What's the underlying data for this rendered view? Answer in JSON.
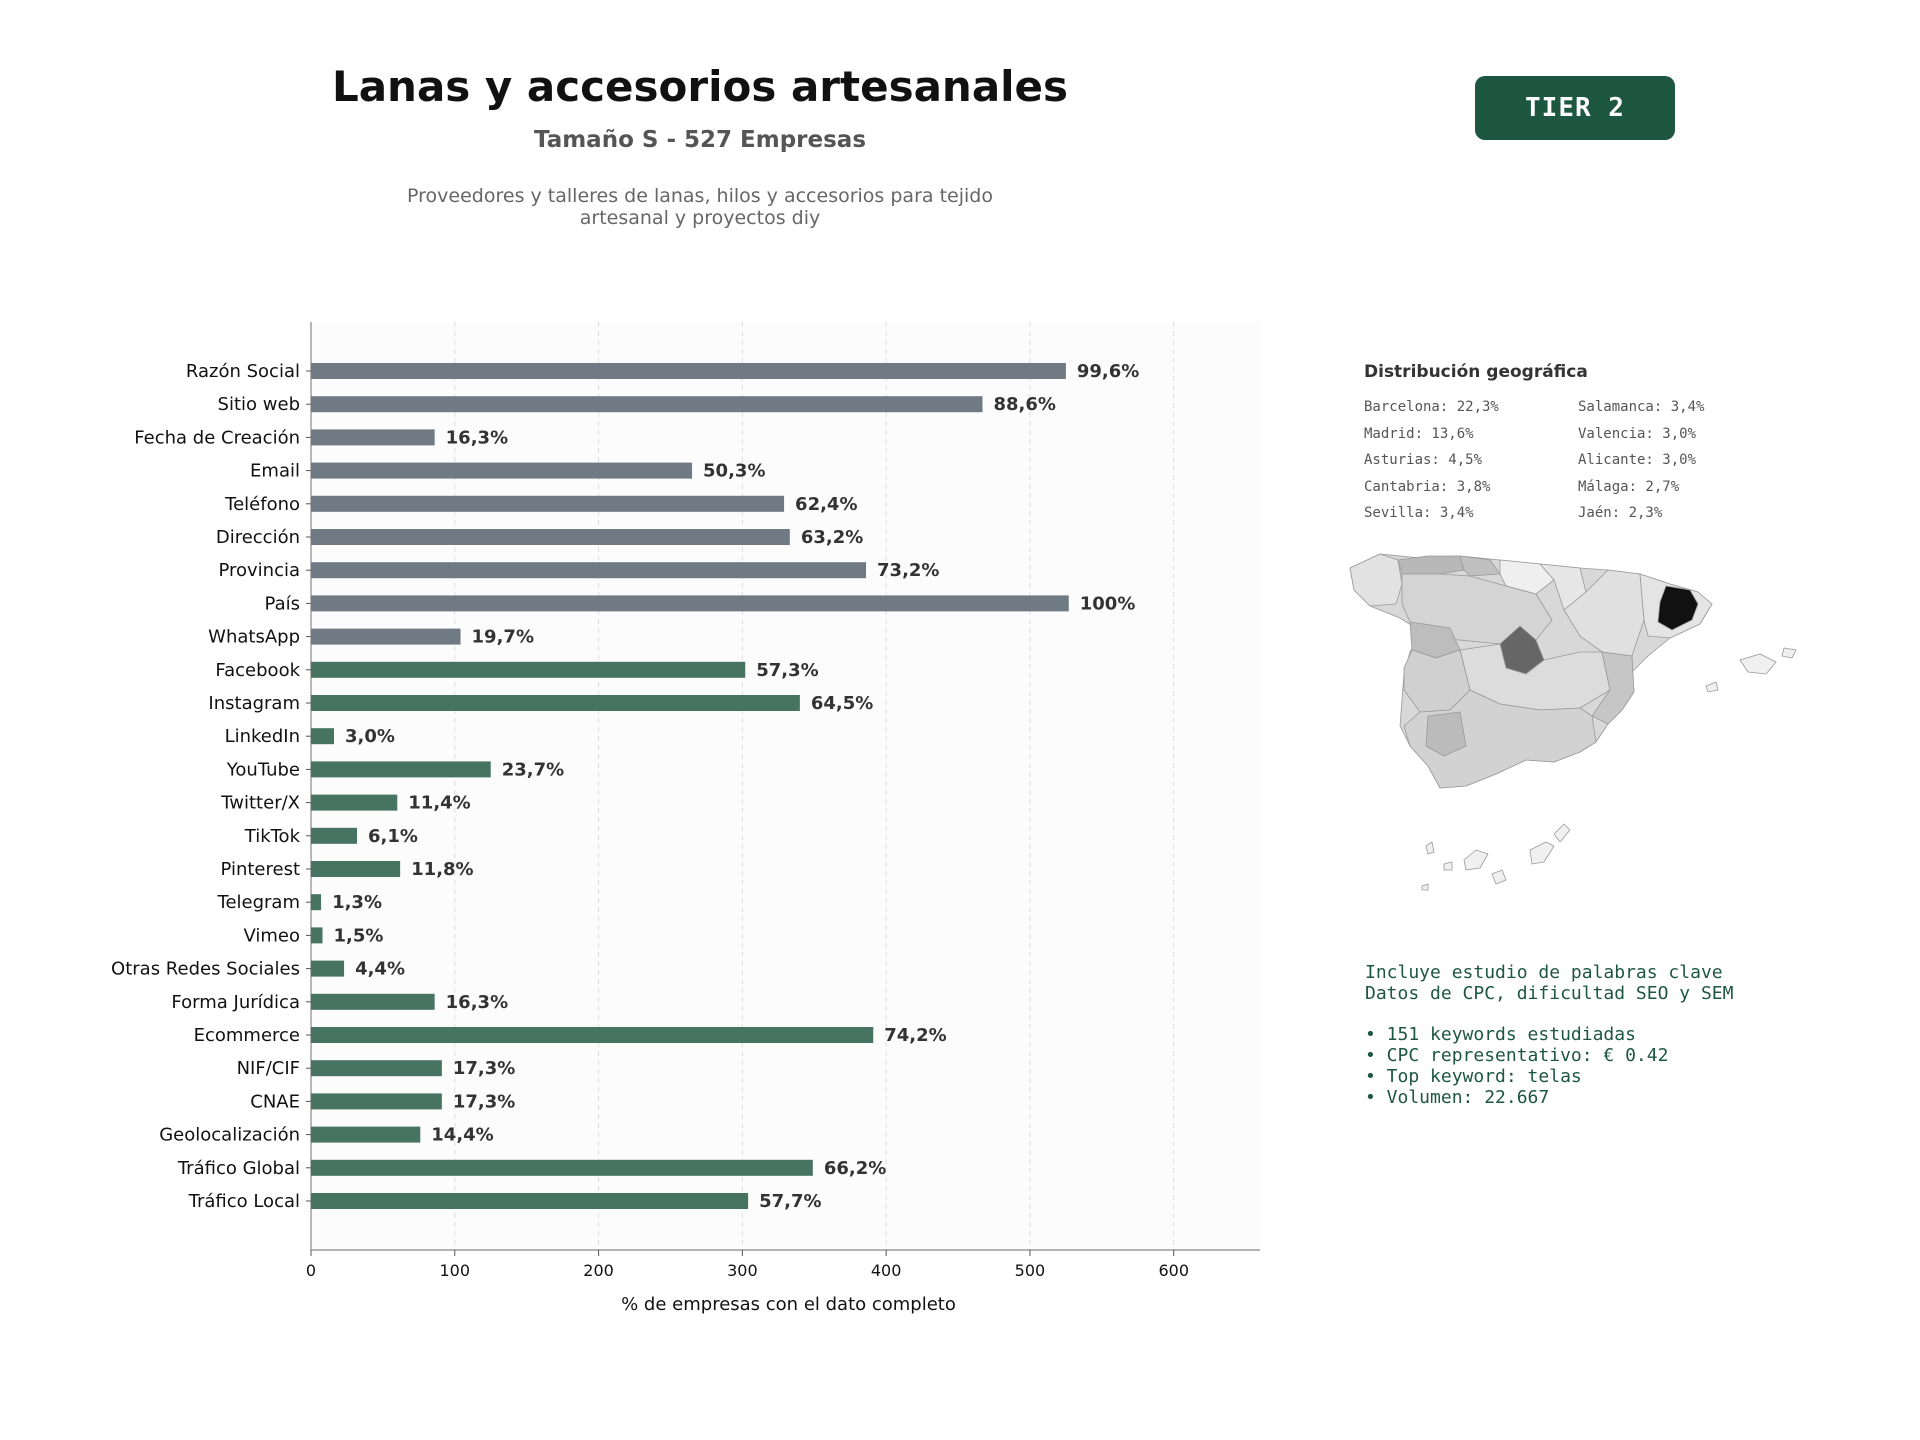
{
  "header": {
    "title": "Lanas y accesorios artesanales",
    "subtitle": "Tamaño S - 527 Empresas",
    "description_line1": "Proveedores y talleres de lanas, hilos y accesorios para tejido",
    "description_line2": "artesanal y proyectos diy",
    "tier_label": "TIER 2"
  },
  "chart_data": {
    "type": "bar",
    "orientation": "horizontal",
    "categories": [
      "Razón Social",
      "Sitio web",
      "Fecha de Creación",
      "Email",
      "Teléfono",
      "Dirección",
      "Provincia",
      "País",
      "WhatsApp",
      "Facebook",
      "Instagram",
      "LinkedIn",
      "YouTube",
      "Twitter/X",
      "TikTok",
      "Pinterest",
      "Telegram",
      "Vimeo",
      "Otras Redes Sociales",
      "Forma Jurídica",
      "Ecommerce",
      "NIF/CIF",
      "CNAE",
      "Geolocalización",
      "Tráfico Global",
      "Tráfico Local"
    ],
    "values": [
      525,
      467,
      86,
      265,
      329,
      333,
      386,
      527,
      104,
      302,
      340,
      16,
      125,
      60,
      32,
      62,
      7,
      8,
      23,
      86,
      391,
      91,
      91,
      76,
      349,
      304
    ],
    "data_labels": [
      "99,6%",
      "88,6%",
      "16,3%",
      "50,3%",
      "62,4%",
      "63,2%",
      "73,2%",
      "100%",
      "19,7%",
      "57,3%",
      "64,5%",
      "3,0%",
      "23,7%",
      "11,4%",
      "6,1%",
      "11,8%",
      "1,3%",
      "1,5%",
      "4,4%",
      "16,3%",
      "74,2%",
      "17,3%",
      "17,3%",
      "14,4%",
      "66,2%",
      "57,7%"
    ],
    "bar_colors": [
      "#6f7a84",
      "#6f7a84",
      "#6f7a84",
      "#6f7a84",
      "#6f7a84",
      "#6f7a84",
      "#6f7a84",
      "#6f7a84",
      "#6f7a84",
      "#477462",
      "#477462",
      "#477462",
      "#477462",
      "#477462",
      "#477462",
      "#477462",
      "#477462",
      "#477462",
      "#477462",
      "#477462",
      "#477462",
      "#477462",
      "#477462",
      "#477462",
      "#477462",
      "#477462"
    ],
    "xticks": [
      0,
      100,
      200,
      300,
      400,
      500,
      600
    ],
    "xlim": [
      0,
      660
    ],
    "xlabel": "% de empresas con el dato completo",
    "grid": "vertical-dashed"
  },
  "geo": {
    "title": "Distribución geográfica",
    "items": [
      "Barcelona: 22,3%",
      "Madrid: 13,6%",
      "Asturias: 4,5%",
      "Cantabria: 3,8%",
      "Sevilla: 3,4%",
      "Salamanca: 3,4%",
      "Valencia: 3,0%",
      "Alicante: 3,0%",
      "Málaga: 2,7%",
      "Jaén: 2,3%"
    ]
  },
  "info": {
    "line1": "Incluye estudio de palabras clave",
    "line2": "Datos de CPC, dificultad SEO y SEM",
    "bullets": [
      "• 151 keywords estudiadas",
      "• CPC representativo: € 0.42",
      "• Top keyword: telas",
      "• Volumen: 22.667"
    ]
  }
}
